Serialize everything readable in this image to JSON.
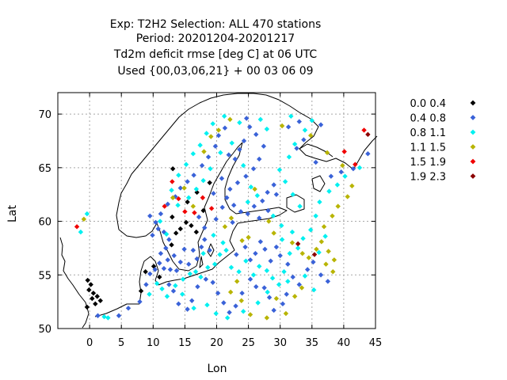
{
  "title_lines": [
    "Exp: T2H2   Selection: ALL    470 stations",
    "Period: 20201204-20201217",
    "Td2m deficit rmse [deg C] at  06 UTC",
    "Used {00,03,06,21} + 00 03 06 09"
  ],
  "chart_data": {
    "type": "scatter",
    "xlabel": "Lon",
    "ylabel": "Lat",
    "xlim": [
      -5,
      45
    ],
    "ylim": [
      50,
      72
    ],
    "x_ticks": [
      0,
      5,
      10,
      15,
      20,
      25,
      30,
      35,
      40,
      45
    ],
    "y_ticks": [
      50,
      55,
      60,
      65,
      70
    ],
    "grid": true,
    "legend_position": "right",
    "legend": [
      {
        "label": "0.0 0.4",
        "color": "#000000"
      },
      {
        "label": "0.4 0.8",
        "color": "#3a62d8"
      },
      {
        "label": "0.8 1.1",
        "color": "#00f0f0"
      },
      {
        "label": "1.1 1.5",
        "color": "#b8b400"
      },
      {
        "label": "1.5 1.9",
        "color": "#f00000"
      },
      {
        "label": "1.9 2.3",
        "color": "#8b0000"
      }
    ],
    "series": [
      {
        "label": "0.0 0.4",
        "points": [
          [
            -0.3,
            54.5
          ],
          [
            0.2,
            54.1
          ],
          [
            -0.1,
            53.6
          ],
          [
            0.6,
            53.3
          ],
          [
            0.4,
            52.8
          ],
          [
            1.2,
            53.0
          ],
          [
            0.9,
            52.3
          ],
          [
            1.7,
            52.6
          ],
          [
            -0.4,
            52.0
          ],
          [
            8.1,
            53.5
          ],
          [
            8.8,
            55.3
          ],
          [
            10.1,
            55.8
          ],
          [
            11.0,
            54.8
          ],
          [
            12.9,
            57.8
          ],
          [
            13.6,
            58.9
          ],
          [
            14.3,
            59.3
          ],
          [
            15.2,
            59.9
          ],
          [
            16.0,
            59.6
          ],
          [
            16.8,
            59.0
          ],
          [
            17.9,
            61.0
          ],
          [
            15.4,
            61.8
          ],
          [
            13.0,
            60.4
          ],
          [
            13.1,
            64.9
          ],
          [
            16.9,
            62.7
          ],
          [
            18.9,
            63.6
          ]
        ]
      },
      {
        "label": "0.4 0.8",
        "points": [
          [
            1.3,
            51.2
          ],
          [
            4.6,
            51.2
          ],
          [
            6.1,
            51.9
          ],
          [
            7.9,
            52.5
          ],
          [
            8.9,
            54.1
          ],
          [
            9.5,
            55.1
          ],
          [
            10.3,
            55.5
          ],
          [
            11.0,
            56.1
          ],
          [
            11.7,
            55.6
          ],
          [
            12.3,
            56.4
          ],
          [
            12.7,
            55.5
          ],
          [
            13.3,
            56.8
          ],
          [
            13.7,
            55.4
          ],
          [
            14.3,
            56.2
          ],
          [
            14.9,
            57.4
          ],
          [
            15.6,
            56.0
          ],
          [
            16.3,
            57.3
          ],
          [
            16.9,
            56.5
          ],
          [
            17.6,
            57.6
          ],
          [
            18.1,
            58.3
          ],
          [
            18.9,
            57.3
          ],
          [
            11.2,
            57.0
          ],
          [
            12.0,
            57.5
          ],
          [
            12.5,
            58.3
          ],
          [
            11.7,
            59.0
          ],
          [
            10.8,
            59.3
          ],
          [
            9.9,
            58.7
          ],
          [
            10.4,
            59.9
          ],
          [
            9.5,
            60.5
          ],
          [
            11.2,
            60.7
          ],
          [
            12.3,
            61.6
          ],
          [
            13.5,
            62.3
          ],
          [
            14.3,
            63.1
          ],
          [
            15.4,
            63.7
          ],
          [
            16.4,
            64.3
          ],
          [
            17.7,
            65.2
          ],
          [
            18.7,
            66.0
          ],
          [
            19.8,
            67.0
          ],
          [
            20.3,
            68.0
          ],
          [
            21.3,
            68.7
          ],
          [
            21.9,
            66.2
          ],
          [
            22.9,
            65.8
          ],
          [
            23.6,
            66.7
          ],
          [
            24.3,
            67.5
          ],
          [
            25.2,
            68.8
          ],
          [
            24.7,
            69.6
          ],
          [
            26.2,
            68.1
          ],
          [
            27.4,
            67.0
          ],
          [
            26.7,
            65.8
          ],
          [
            25.8,
            64.9
          ],
          [
            24.6,
            64.2
          ],
          [
            23.3,
            63.6
          ],
          [
            22.1,
            63.0
          ],
          [
            21.6,
            62.2
          ],
          [
            22.7,
            61.5
          ],
          [
            23.8,
            60.9
          ],
          [
            24.9,
            60.7
          ],
          [
            25.9,
            61.4
          ],
          [
            27.2,
            61.9
          ],
          [
            28.0,
            62.7
          ],
          [
            29.0,
            63.4
          ],
          [
            29.4,
            62.5
          ],
          [
            28.1,
            61.0
          ],
          [
            26.7,
            60.3
          ],
          [
            23.1,
            56.9
          ],
          [
            24.5,
            57.6
          ],
          [
            25.3,
            56.4
          ],
          [
            26.1,
            57.0
          ],
          [
            26.9,
            58.1
          ],
          [
            27.6,
            57.4
          ],
          [
            28.5,
            56.3
          ],
          [
            29.4,
            57.6
          ],
          [
            30.0,
            56.8
          ],
          [
            31.2,
            56.0
          ],
          [
            32.0,
            54.8
          ],
          [
            33.0,
            54.1
          ],
          [
            34.3,
            55.5
          ],
          [
            35.2,
            56.2
          ],
          [
            36.4,
            55.0
          ],
          [
            37.5,
            54.4
          ],
          [
            31.0,
            53.2
          ],
          [
            30.4,
            52.3
          ],
          [
            29.0,
            51.7
          ],
          [
            28.3,
            52.9
          ],
          [
            27.5,
            53.8
          ],
          [
            26.2,
            53.9
          ],
          [
            25.3,
            54.6
          ],
          [
            24.0,
            53.3
          ],
          [
            23.0,
            52.1
          ],
          [
            22.0,
            51.5
          ],
          [
            21.1,
            52.4
          ],
          [
            20.2,
            53.3
          ],
          [
            19.4,
            54.3
          ],
          [
            18.3,
            54.6
          ],
          [
            17.0,
            53.9
          ],
          [
            16.1,
            52.6
          ],
          [
            15.4,
            51.8
          ],
          [
            14.0,
            52.3
          ],
          [
            13.2,
            53.5
          ],
          [
            12.5,
            54.1
          ],
          [
            32.6,
            66.8
          ],
          [
            33.7,
            67.6
          ],
          [
            35.6,
            65.5
          ],
          [
            38.0,
            64.2
          ],
          [
            39.6,
            64.6
          ],
          [
            41.5,
            64.9
          ],
          [
            43.8,
            66.3
          ],
          [
            31.3,
            68.8
          ],
          [
            33.0,
            69.3
          ],
          [
            36.4,
            69.0
          ],
          [
            20.8,
            64.0
          ],
          [
            19.5,
            62.6
          ],
          [
            17.2,
            60.4
          ],
          [
            18.1,
            59.4
          ],
          [
            19.9,
            60.2
          ],
          [
            20.9,
            61.3
          ],
          [
            22.5,
            59.9
          ]
        ]
      },
      {
        "label": "0.8 1.1",
        "points": [
          [
            -1.4,
            59.0
          ],
          [
            -0.4,
            60.7
          ],
          [
            2.3,
            51.1
          ],
          [
            2.9,
            51.0
          ],
          [
            9.4,
            53.2
          ],
          [
            10.6,
            54.2
          ],
          [
            11.4,
            53.7
          ],
          [
            12.2,
            53.0
          ],
          [
            13.5,
            54.0
          ],
          [
            14.7,
            54.6
          ],
          [
            15.8,
            55.1
          ],
          [
            16.7,
            55.3
          ],
          [
            17.5,
            54.8
          ],
          [
            18.6,
            55.7
          ],
          [
            19.7,
            56.0
          ],
          [
            20.5,
            56.9
          ],
          [
            21.5,
            57.3
          ],
          [
            22.3,
            55.7
          ],
          [
            23.5,
            55.3
          ],
          [
            24.6,
            56.3
          ],
          [
            25.8,
            55.0
          ],
          [
            26.7,
            55.8
          ],
          [
            27.9,
            55.4
          ],
          [
            28.8,
            54.7
          ],
          [
            30.6,
            55.3
          ],
          [
            31.5,
            57.0
          ],
          [
            32.8,
            57.5
          ],
          [
            33.6,
            58.4
          ],
          [
            34.8,
            59.2
          ],
          [
            35.6,
            60.5
          ],
          [
            36.2,
            61.8
          ],
          [
            37.7,
            62.8
          ],
          [
            39.0,
            63.4
          ],
          [
            40.2,
            64.2
          ],
          [
            42.5,
            65.0
          ],
          [
            33.1,
            61.4
          ],
          [
            32.0,
            62.5
          ],
          [
            30.8,
            63.7
          ],
          [
            29.9,
            64.8
          ],
          [
            31.4,
            66.0
          ],
          [
            32.3,
            67.2
          ],
          [
            33.9,
            68.5
          ],
          [
            35.0,
            69.4
          ],
          [
            31.7,
            69.8
          ],
          [
            27.9,
            68.6
          ],
          [
            26.9,
            69.5
          ],
          [
            23.6,
            69.2
          ],
          [
            22.4,
            67.3
          ],
          [
            20.6,
            66.4
          ],
          [
            19.0,
            64.9
          ],
          [
            17.9,
            63.8
          ],
          [
            16.8,
            63.0
          ],
          [
            15.6,
            62.2
          ],
          [
            13.9,
            61.5
          ],
          [
            12.9,
            62.9
          ],
          [
            14.0,
            64.3
          ],
          [
            15.2,
            65.3
          ],
          [
            16.3,
            66.3
          ],
          [
            17.4,
            67.1
          ],
          [
            18.4,
            68.2
          ],
          [
            19.4,
            69.1
          ],
          [
            21.2,
            69.8
          ],
          [
            24.2,
            65.2
          ],
          [
            25.4,
            63.2
          ],
          [
            26.4,
            62.4
          ],
          [
            24.9,
            61.8
          ],
          [
            28.9,
            60.5
          ],
          [
            30.2,
            59.6
          ],
          [
            31.9,
            59.0
          ],
          [
            30.3,
            58.3
          ],
          [
            21.0,
            58.0
          ],
          [
            19.5,
            58.7
          ],
          [
            17.9,
            57.0
          ],
          [
            14.6,
            53.2
          ],
          [
            16.4,
            51.9
          ],
          [
            18.5,
            52.2
          ],
          [
            19.9,
            51.4
          ],
          [
            21.7,
            51.0
          ],
          [
            24.2,
            51.6
          ],
          [
            26.5,
            52.4
          ],
          [
            28.0,
            53.4
          ],
          [
            29.8,
            54.1
          ],
          [
            31.2,
            54.4
          ],
          [
            33.9,
            54.9
          ],
          [
            35.3,
            53.6
          ],
          [
            36.1,
            57.1
          ],
          [
            37.1,
            58.6
          ],
          [
            11.1,
            60.0
          ],
          [
            12.1,
            58.8
          ]
        ]
      },
      {
        "label": "1.1 1.5",
        "points": [
          [
            -0.9,
            60.2
          ],
          [
            13.1,
            62.2
          ],
          [
            14.9,
            63.1
          ],
          [
            16.3,
            61.4
          ],
          [
            18.0,
            66.5
          ],
          [
            19.1,
            67.9
          ],
          [
            20.3,
            68.5
          ],
          [
            22.1,
            69.5
          ],
          [
            26.0,
            63.0
          ],
          [
            25.0,
            58.5
          ],
          [
            24.0,
            58.2
          ],
          [
            22.3,
            60.3
          ],
          [
            21.3,
            59.5
          ],
          [
            23.2,
            54.4
          ],
          [
            22.2,
            53.4
          ],
          [
            23.9,
            52.6
          ],
          [
            25.3,
            51.3
          ],
          [
            27.9,
            51.0
          ],
          [
            29.4,
            52.8
          ],
          [
            30.9,
            51.4
          ],
          [
            32.3,
            53.0
          ],
          [
            33.4,
            53.8
          ],
          [
            34.5,
            56.6
          ],
          [
            35.7,
            57.4
          ],
          [
            36.5,
            58.1
          ],
          [
            37.6,
            57.2
          ],
          [
            38.5,
            56.4
          ],
          [
            38.3,
            55.3
          ],
          [
            37.2,
            56.0
          ],
          [
            36.9,
            59.5
          ],
          [
            38.2,
            60.5
          ],
          [
            39.1,
            61.4
          ],
          [
            40.6,
            62.3
          ],
          [
            41.3,
            63.3
          ],
          [
            39.8,
            65.2
          ],
          [
            37.4,
            66.4
          ],
          [
            34.8,
            68.0
          ],
          [
            30.3,
            68.9
          ],
          [
            28.2,
            60.0
          ],
          [
            29.0,
            58.9
          ],
          [
            31.9,
            58.0
          ],
          [
            33.5,
            57.0
          ]
        ]
      },
      {
        "label": "1.5 1.9",
        "points": [
          [
            -2.0,
            59.5
          ],
          [
            11.8,
            61.4
          ],
          [
            13.0,
            63.7
          ],
          [
            14.0,
            62.1
          ],
          [
            15.0,
            60.9
          ],
          [
            16.5,
            60.8
          ],
          [
            17.8,
            62.2
          ],
          [
            19.2,
            61.2
          ],
          [
            40.1,
            66.5
          ],
          [
            41.8,
            65.3
          ],
          [
            43.2,
            68.5
          ]
        ]
      },
      {
        "label": "1.9 2.3",
        "points": [
          [
            32.8,
            57.9
          ],
          [
            35.4,
            56.9
          ],
          [
            43.8,
            68.1
          ]
        ]
      }
    ]
  }
}
